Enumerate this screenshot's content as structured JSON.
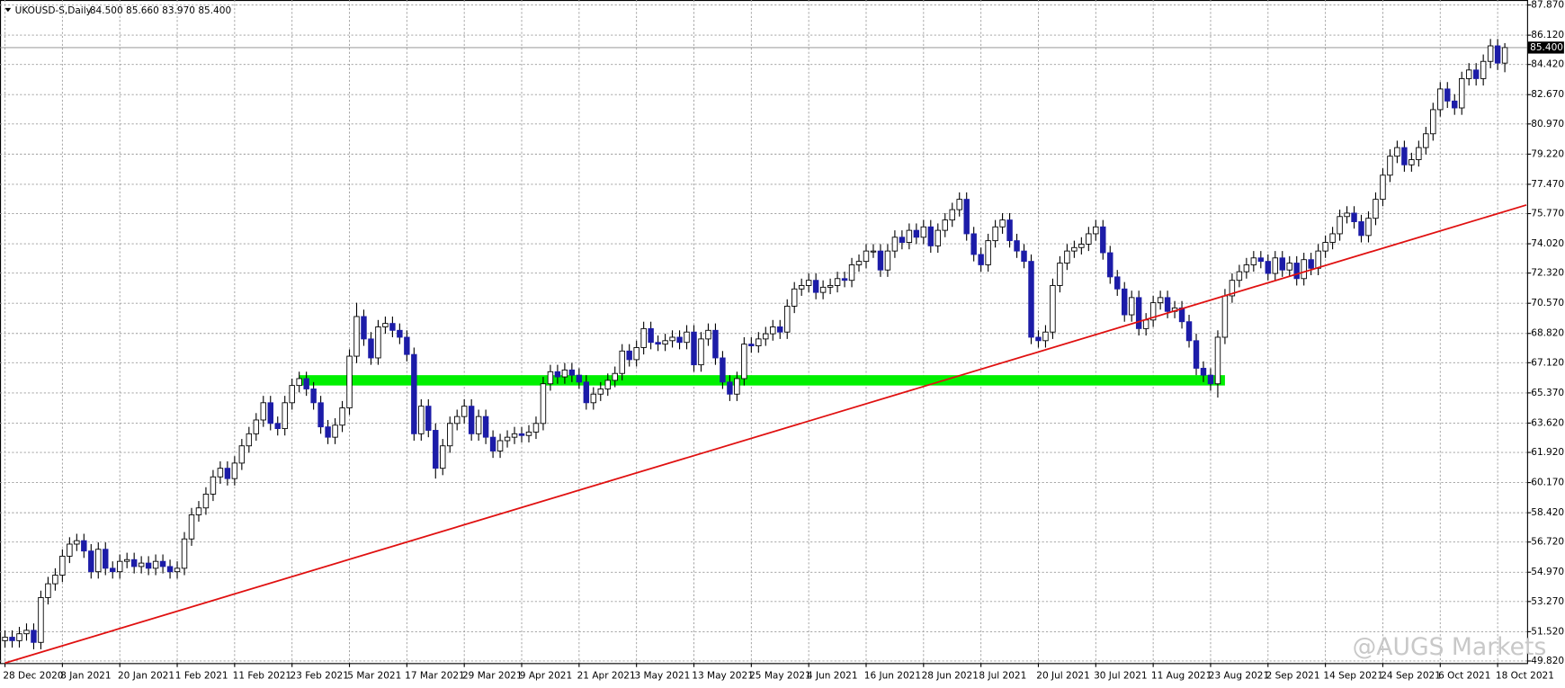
{
  "chart_data": {
    "type": "candlestick",
    "symbol": "UKOUSD-S,Daily",
    "header_values": "84.500 85.660 83.970 85.400",
    "watermark": "@AUGS Markets",
    "categories": [
      "28 Dec 2020",
      null,
      null,
      null,
      null,
      null,
      null,
      null,
      "8 Jan 2021",
      null,
      null,
      null,
      null,
      null,
      null,
      null,
      "20 Jan 2021",
      null,
      null,
      null,
      null,
      null,
      null,
      null,
      "1 Feb 2021",
      null,
      null,
      null,
      null,
      null,
      null,
      null,
      "11 Feb 2021",
      null,
      null,
      null,
      null,
      null,
      null,
      null,
      "23 Feb 2021",
      null,
      null,
      null,
      null,
      null,
      null,
      null,
      "5 Mar 2021",
      null,
      null,
      null,
      null,
      null,
      null,
      null,
      "17 Mar 2021",
      null,
      null,
      null,
      null,
      null,
      null,
      null,
      "29 Mar 2021",
      null,
      null,
      null,
      null,
      null,
      null,
      null,
      "9 Apr 2021",
      null,
      null,
      null,
      null,
      null,
      null,
      null,
      "21 Apr 2021",
      null,
      null,
      null,
      null,
      null,
      null,
      null,
      "3 May 2021",
      null,
      null,
      null,
      null,
      null,
      null,
      null,
      "13 May 2021",
      null,
      null,
      null,
      null,
      null,
      null,
      null,
      "25 May 2021",
      null,
      null,
      null,
      null,
      null,
      null,
      null,
      "4 Jun 2021",
      null,
      null,
      null,
      null,
      null,
      null,
      null,
      "16 Jun 2021",
      null,
      null,
      null,
      null,
      null,
      null,
      null,
      "28 Jun 2021",
      null,
      null,
      null,
      null,
      null,
      null,
      null,
      "8 Jul 2021",
      null,
      null,
      null,
      null,
      null,
      null,
      null,
      "20 Jul 2021",
      null,
      null,
      null,
      null,
      null,
      null,
      null,
      "30 Jul 2021",
      null,
      null,
      null,
      null,
      null,
      null,
      null,
      "11 Aug 2021",
      null,
      null,
      null,
      null,
      null,
      null,
      null,
      "23 Aug 2021",
      null,
      null,
      null,
      null,
      null,
      null,
      null,
      "2 Sep 2021",
      null,
      null,
      null,
      null,
      null,
      null,
      null,
      "14 Sep 2021",
      null,
      null,
      null,
      null,
      null,
      null,
      null,
      "24 Sep 2021",
      null,
      null,
      null,
      null,
      null,
      null,
      null,
      "6 Oct 2021",
      null,
      null,
      null,
      null,
      null,
      null,
      null,
      "18 Oct 2021",
      null
    ],
    "open": [
      51.0,
      51.2,
      51.0,
      51.4,
      51.6,
      50.9,
      53.5,
      54.3,
      54.8,
      55.9,
      56.6,
      56.8,
      56.2,
      55.0,
      56.3,
      55.2,
      55.0,
      55.6,
      55.7,
      55.3,
      55.5,
      55.2,
      55.6,
      55.3,
      55.0,
      55.2,
      56.9,
      58.3,
      58.7,
      59.5,
      60.5,
      61.0,
      60.4,
      61.3,
      62.3,
      63.0,
      63.8,
      64.8,
      63.6,
      63.3,
      64.8,
      65.8,
      66.2,
      65.6,
      64.8,
      63.4,
      62.8,
      63.5,
      64.5,
      67.5,
      69.8,
      68.5,
      67.4,
      69.2,
      69.4,
      69.0,
      68.6,
      67.6,
      63.0,
      64.6,
      63.2,
      61.0,
      62.3,
      63.6,
      64.0,
      64.6,
      63.0,
      64.0,
      62.8,
      62.0,
      62.6,
      62.8,
      63.0,
      62.9,
      63.1,
      63.6,
      65.9,
      66.6,
      66.3,
      66.7,
      66.4,
      66.0,
      64.8,
      65.3,
      65.6,
      66.1,
      66.5,
      67.8,
      67.3,
      68.0,
      69.1,
      68.3,
      68.2,
      68.4,
      68.6,
      68.3,
      68.9,
      67.0,
      68.5,
      69.0,
      67.4,
      66.0,
      65.3,
      66.2,
      68.2,
      68.1,
      68.5,
      68.8,
      69.2,
      68.9,
      70.4,
      71.4,
      71.6,
      71.9,
      71.2,
      71.5,
      71.6,
      72.0,
      71.9,
      72.8,
      73.0,
      73.6,
      73.6,
      72.5,
      73.6,
      74.4,
      74.1,
      74.8,
      74.4,
      75.0,
      73.9,
      74.8,
      75.4,
      76.0,
      76.6,
      74.6,
      73.4,
      72.8,
      74.2,
      75.0,
      75.4,
      74.2,
      73.6,
      73.0,
      68.6,
      68.4,
      68.9,
      71.6,
      72.9,
      73.6,
      73.8,
      74.0,
      74.6,
      75.0,
      73.5,
      72.1,
      71.4,
      69.9,
      70.9,
      69.1,
      69.6,
      70.6,
      70.9,
      70.1,
      70.3,
      69.5,
      68.4,
      66.8,
      66.4,
      65.9,
      68.6,
      71.0,
      71.9,
      72.4,
      72.8,
      73.2,
      73.0,
      72.3,
      73.2,
      72.5,
      72.9,
      72.0,
      73.1,
      72.6,
      73.6,
      74.1,
      74.6,
      75.6,
      75.8,
      75.3,
      74.5,
      75.5,
      76.6,
      78.0,
      79.1,
      79.6,
      78.6,
      78.9,
      79.6,
      80.4,
      81.8,
      83.0,
      82.3,
      81.9,
      83.6,
      84.1,
      83.6,
      84.6,
      85.5,
      84.5
    ],
    "high": [
      51.6,
      51.6,
      51.8,
      52.0,
      52.0,
      53.9,
      54.7,
      55.2,
      56.3,
      57.0,
      57.2,
      57.2,
      56.6,
      56.7,
      56.7,
      55.6,
      56.0,
      56.1,
      56.1,
      55.9,
      55.9,
      56.0,
      56.0,
      55.7,
      55.6,
      57.3,
      58.7,
      59.1,
      59.9,
      60.9,
      61.4,
      61.4,
      61.7,
      62.7,
      63.4,
      64.2,
      65.2,
      65.2,
      64.0,
      65.2,
      66.2,
      66.6,
      66.6,
      66.0,
      65.2,
      63.8,
      63.9,
      64.9,
      67.9,
      70.6,
      70.2,
      68.9,
      69.6,
      69.8,
      69.8,
      69.4,
      69.0,
      68.0,
      65.0,
      65.0,
      63.6,
      62.7,
      64.0,
      64.4,
      65.0,
      65.0,
      64.4,
      64.4,
      63.2,
      63.0,
      63.2,
      63.4,
      63.4,
      63.5,
      64.0,
      66.3,
      67.0,
      67.0,
      67.1,
      67.1,
      66.8,
      66.4,
      65.7,
      66.0,
      66.5,
      66.9,
      68.2,
      68.2,
      68.4,
      69.5,
      69.5,
      68.7,
      68.8,
      69.0,
      69.0,
      69.3,
      69.3,
      68.9,
      69.4,
      69.4,
      67.8,
      66.4,
      66.6,
      68.6,
      68.6,
      68.9,
      69.2,
      69.6,
      69.6,
      70.8,
      71.8,
      72.0,
      72.3,
      72.3,
      71.9,
      72.0,
      72.4,
      72.4,
      73.2,
      73.4,
      74.0,
      74.0,
      74.0,
      74.0,
      74.8,
      74.8,
      75.2,
      75.2,
      75.4,
      75.4,
      75.2,
      75.8,
      76.4,
      77.0,
      77.0,
      75.0,
      73.8,
      74.6,
      75.4,
      75.8,
      75.8,
      74.6,
      74.0,
      73.4,
      69.0,
      69.3,
      72.0,
      73.3,
      74.0,
      74.2,
      74.4,
      75.0,
      75.4,
      75.4,
      73.9,
      72.5,
      71.8,
      71.3,
      71.3,
      70.0,
      71.0,
      71.3,
      71.3,
      70.7,
      70.7,
      69.9,
      68.8,
      67.2,
      66.8,
      69.0,
      71.4,
      72.3,
      72.8,
      73.2,
      73.6,
      73.6,
      73.4,
      73.6,
      73.6,
      73.3,
      73.3,
      73.5,
      73.5,
      74.0,
      74.5,
      75.0,
      76.0,
      76.2,
      76.2,
      75.7,
      75.9,
      77.0,
      78.4,
      79.5,
      80.0,
      80.0,
      79.3,
      80.0,
      80.8,
      82.2,
      83.4,
      83.4,
      82.7,
      84.0,
      84.5,
      84.5,
      85.0,
      85.9,
      85.9,
      85.66
    ],
    "low": [
      50.6,
      50.6,
      50.6,
      51.0,
      50.5,
      50.5,
      53.1,
      53.9,
      54.4,
      55.5,
      56.2,
      55.8,
      54.6,
      54.6,
      54.8,
      54.6,
      54.6,
      55.2,
      54.9,
      54.9,
      54.8,
      54.8,
      54.9,
      54.6,
      54.6,
      54.8,
      56.5,
      57.9,
      58.3,
      59.1,
      60.1,
      60.0,
      60.0,
      60.9,
      61.9,
      62.6,
      63.4,
      63.2,
      62.9,
      62.9,
      64.4,
      65.4,
      65.2,
      64.4,
      63.0,
      62.4,
      62.4,
      63.1,
      64.1,
      67.1,
      68.1,
      67.0,
      67.0,
      68.8,
      68.6,
      68.2,
      67.2,
      62.6,
      62.6,
      62.8,
      60.4,
      60.6,
      61.9,
      63.2,
      63.6,
      62.6,
      62.6,
      62.4,
      61.6,
      61.6,
      62.2,
      62.4,
      62.5,
      62.5,
      62.7,
      63.2,
      65.5,
      65.9,
      65.9,
      66.0,
      65.6,
      64.4,
      64.4,
      64.9,
      65.2,
      65.7,
      66.1,
      66.9,
      66.9,
      67.6,
      67.9,
      67.8,
      67.8,
      68.0,
      67.9,
      67.9,
      66.6,
      66.6,
      68.1,
      67.0,
      65.6,
      64.9,
      64.9,
      65.8,
      67.7,
      67.7,
      68.1,
      68.4,
      68.5,
      68.5,
      70.0,
      71.0,
      71.2,
      70.8,
      70.8,
      71.1,
      71.2,
      71.5,
      71.5,
      72.4,
      72.6,
      73.2,
      72.1,
      72.1,
      73.2,
      73.7,
      73.7,
      74.0,
      74.0,
      73.5,
      73.5,
      74.4,
      75.0,
      75.6,
      74.2,
      73.0,
      72.4,
      72.4,
      73.8,
      74.6,
      73.8,
      73.2,
      72.6,
      68.2,
      68.0,
      68.0,
      68.5,
      71.2,
      72.5,
      73.2,
      73.4,
      73.6,
      74.2,
      73.1,
      71.7,
      71.0,
      69.5,
      69.5,
      68.7,
      68.7,
      69.2,
      70.2,
      69.7,
      69.7,
      69.1,
      68.0,
      66.4,
      66.0,
      65.5,
      65.1,
      68.2,
      70.6,
      71.5,
      72.0,
      72.4,
      72.6,
      71.9,
      71.9,
      72.1,
      72.1,
      71.6,
      71.6,
      72.2,
      72.2,
      73.2,
      73.7,
      74.2,
      75.2,
      74.9,
      74.1,
      74.1,
      75.1,
      76.2,
      77.6,
      78.7,
      78.2,
      78.2,
      78.5,
      79.2,
      80.0,
      81.4,
      81.9,
      81.5,
      81.5,
      83.2,
      83.2,
      83.2,
      84.2,
      84.1,
      83.97
    ],
    "close": [
      51.2,
      51.0,
      51.4,
      51.6,
      50.9,
      53.5,
      54.3,
      54.8,
      55.9,
      56.6,
      56.8,
      56.2,
      55.0,
      56.3,
      55.2,
      55.0,
      55.6,
      55.7,
      55.3,
      55.5,
      55.2,
      55.6,
      55.3,
      55.0,
      55.2,
      56.9,
      58.3,
      58.7,
      59.5,
      60.5,
      61.0,
      60.4,
      61.3,
      62.3,
      63.0,
      63.8,
      64.8,
      63.6,
      63.3,
      64.8,
      65.8,
      66.2,
      65.6,
      64.8,
      63.4,
      62.8,
      63.5,
      64.5,
      67.5,
      69.8,
      68.5,
      67.4,
      69.2,
      69.4,
      69.0,
      68.6,
      67.6,
      63.0,
      64.6,
      63.2,
      61.0,
      62.3,
      63.6,
      64.0,
      64.6,
      63.0,
      64.0,
      62.8,
      62.0,
      62.6,
      62.8,
      63.0,
      62.9,
      63.1,
      63.6,
      65.9,
      66.6,
      66.3,
      66.7,
      66.4,
      66.0,
      64.8,
      65.3,
      65.6,
      66.1,
      66.5,
      67.8,
      67.3,
      68.0,
      69.1,
      68.3,
      68.2,
      68.4,
      68.6,
      68.3,
      68.9,
      67.0,
      68.5,
      69.0,
      67.4,
      66.0,
      65.3,
      66.2,
      68.2,
      68.1,
      68.5,
      68.8,
      69.2,
      68.9,
      70.4,
      71.4,
      71.6,
      71.9,
      71.2,
      71.5,
      71.6,
      72.0,
      71.9,
      72.8,
      73.0,
      73.6,
      73.6,
      72.5,
      73.6,
      74.4,
      74.1,
      74.8,
      74.4,
      75.0,
      73.9,
      74.8,
      75.4,
      76.0,
      76.6,
      74.6,
      73.4,
      72.8,
      74.2,
      75.0,
      75.4,
      74.2,
      73.6,
      73.0,
      68.6,
      68.4,
      68.9,
      71.6,
      72.9,
      73.6,
      73.8,
      74.0,
      74.6,
      75.0,
      73.5,
      72.1,
      71.4,
      69.9,
      70.9,
      69.1,
      69.6,
      70.6,
      70.9,
      70.1,
      70.3,
      69.5,
      68.4,
      66.8,
      66.4,
      65.9,
      68.6,
      71.0,
      71.9,
      72.4,
      72.8,
      73.2,
      73.0,
      72.3,
      73.2,
      72.5,
      72.9,
      72.0,
      73.1,
      72.6,
      73.6,
      74.1,
      74.6,
      75.6,
      75.8,
      75.3,
      74.5,
      75.5,
      76.6,
      78.0,
      79.1,
      79.6,
      78.6,
      78.9,
      79.6,
      80.4,
      81.8,
      83.0,
      82.3,
      81.9,
      83.6,
      84.1,
      83.6,
      84.6,
      85.5,
      84.5,
      85.4
    ],
    "up_color": "#ffffff",
    "down_color": "#1c1ca8",
    "wick_color": "#000000",
    "ylim": [
      49.7,
      88.16
    ],
    "yticks": [
      {
        "value": 49.82,
        "label": "49.820"
      },
      {
        "value": 51.52,
        "label": "51.520"
      },
      {
        "value": 53.27,
        "label": "53.270"
      },
      {
        "value": 54.97,
        "label": "54.970"
      },
      {
        "value": 56.72,
        "label": "56.720"
      },
      {
        "value": 58.42,
        "label": "58.420"
      },
      {
        "value": 60.17,
        "label": "60.170"
      },
      {
        "value": 61.92,
        "label": "61.920"
      },
      {
        "value": 63.62,
        "label": "63.620"
      },
      {
        "value": 65.37,
        "label": "65.370"
      },
      {
        "value": 67.12,
        "label": "67.120"
      },
      {
        "value": 68.82,
        "label": "68.820"
      },
      {
        "value": 70.57,
        "label": "70.570"
      },
      {
        "value": 72.32,
        "label": "72.320"
      },
      {
        "value": 74.02,
        "label": "74.020"
      },
      {
        "value": 75.77,
        "label": "75.770"
      },
      {
        "value": 77.47,
        "label": "77.470"
      },
      {
        "value": 79.22,
        "label": "79.220"
      },
      {
        "value": 80.97,
        "label": "80.970"
      },
      {
        "value": 82.67,
        "label": "82.670"
      },
      {
        "value": 84.42,
        "label": "84.420"
      },
      {
        "value": 86.12,
        "label": "86.120"
      },
      {
        "value": 87.87,
        "label": "87.870"
      }
    ],
    "grid": true,
    "last_price": {
      "value": 85.4,
      "label": "85.400"
    },
    "trendline": {
      "x": [
        0,
        212
      ],
      "y": [
        49.7,
        76.27
      ],
      "color": "#e01010"
    },
    "zone": {
      "x": [
        41,
        170
      ],
      "y": [
        65.8,
        66.4
      ],
      "color": "#00f000"
    }
  }
}
